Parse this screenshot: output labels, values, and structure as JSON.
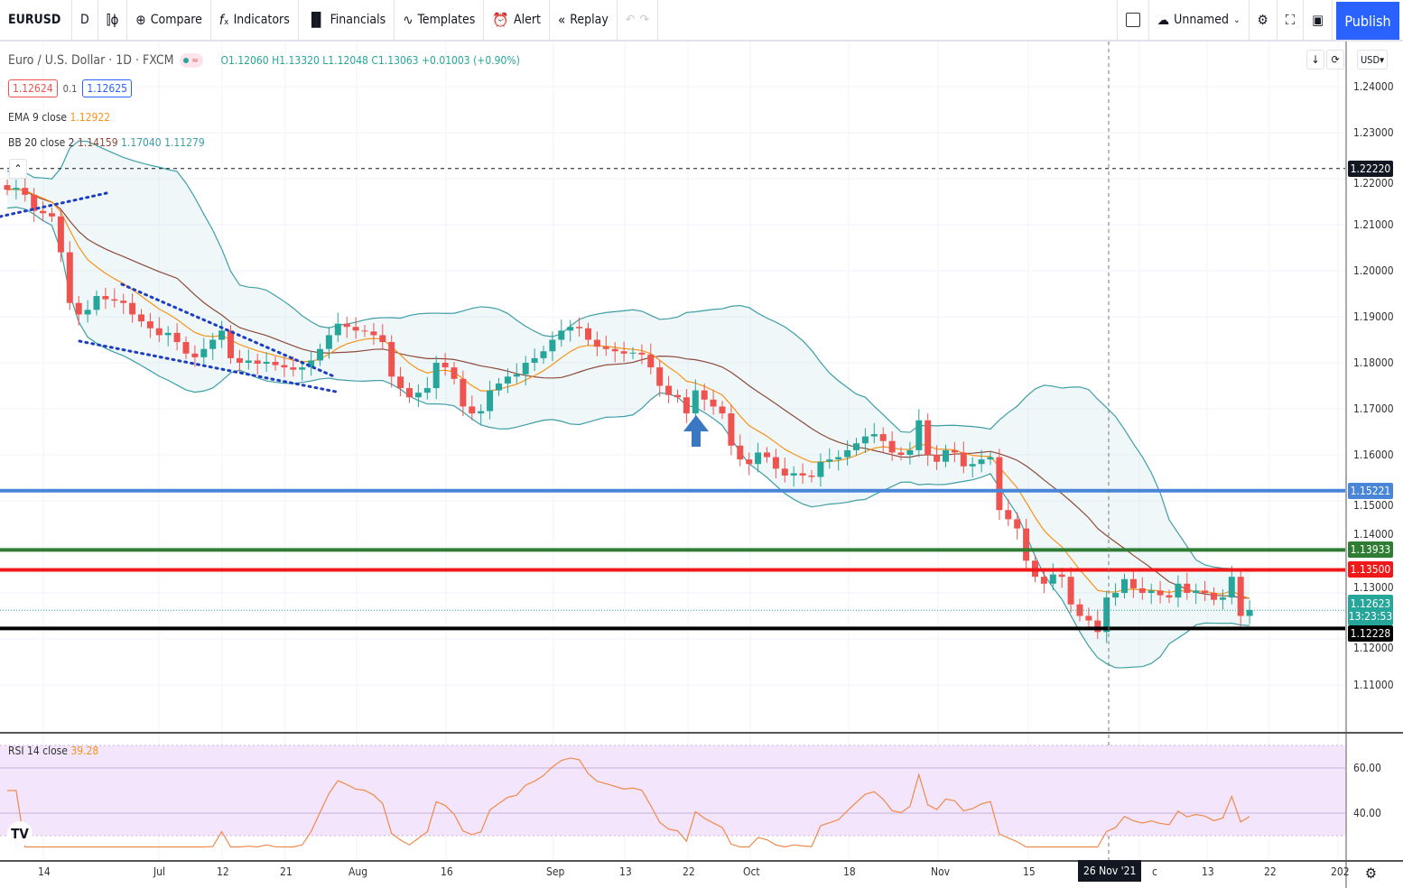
{
  "toolbar": {
    "symbol": "EURUSD",
    "interval": "D",
    "compare": "Compare",
    "indicators": "Indicators",
    "financials": "Financials",
    "templates": "Templates",
    "alert": "Alert",
    "replay": "Replay",
    "layout_name": "Unnamed",
    "publish": "Publish"
  },
  "legend": {
    "title": "Euro / U.S. Dollar · 1D · FXCM",
    "open": "O1.12060",
    "high": "H1.13320",
    "low": "L1.12048",
    "close": "C1.13063",
    "change": "+0.01003 (+0.90%)",
    "bid": "1.12624",
    "spread": "0.1",
    "ask": "1.12625",
    "ema_label": "EMA 9 close",
    "ema_value": "1.12922",
    "bb_label": "BB 20 close 2",
    "bb_basis": "1.14159",
    "bb_upper": "1.17040",
    "bb_lower": "1.11279",
    "rsi_label": "RSI 14 close",
    "rsi_value": "39.28"
  },
  "price_axis": {
    "currency": "USD",
    "ticks": [
      "1.24000",
      "1.23000",
      "1.22000",
      "1.21000",
      "1.20000",
      "1.19000",
      "1.18000",
      "1.17000",
      "1.16000",
      "1.15000",
      "1.14000",
      "1.13000",
      "1.12000",
      "1.11000"
    ],
    "rsi_ticks": [
      "60.00",
      "40.00"
    ]
  },
  "time_axis": {
    "labels": [
      "14",
      "Jul",
      "12",
      "21",
      "Aug",
      "16",
      "Sep",
      "13",
      "22",
      "Oct",
      "18",
      "Nov",
      "15",
      "c",
      "13",
      "22",
      "202"
    ],
    "crosshair_label": "26 Nov '21"
  },
  "horizontal_lines": [
    {
      "price": 1.2222,
      "label": "1.22220",
      "color": "#131722",
      "style": "dashed"
    },
    {
      "price": 1.15221,
      "label": "1.15221",
      "color": "#4a86d8",
      "style": "solid"
    },
    {
      "price": 1.13933,
      "label": "1.13933",
      "color": "#2e7d32",
      "style": "solid"
    },
    {
      "price": 1.135,
      "label": "1.13500",
      "color": "#f01818",
      "style": "solid"
    },
    {
      "price": 1.12228,
      "label": "1.12228",
      "color": "#000000",
      "style": "solid"
    }
  ],
  "last_price": {
    "label": "1.12623",
    "countdown": "13:23:53",
    "color": "#26a69a"
  },
  "colors": {
    "up": "#26a69a",
    "down": "#ef5350",
    "ema": "#f7931a",
    "bb_basis": "#8d4a3a",
    "bb_band": "#3d9ea6",
    "rsi": "#f08a4b",
    "accent": "#2962ff"
  },
  "closes": [
    1.2176,
    1.218,
    1.2165,
    1.213,
    1.2125,
    1.2118,
    1.204,
    1.193,
    1.1905,
    1.1915,
    1.1945,
    1.1938,
    1.1935,
    1.193,
    1.1905,
    1.189,
    1.1875,
    1.186,
    1.1865,
    1.1845,
    1.182,
    1.1812,
    1.183,
    1.185,
    1.187,
    1.181,
    1.18,
    1.1805,
    1.1798,
    1.1802,
    1.1795,
    1.179,
    1.1785,
    1.179,
    1.1805,
    1.183,
    1.186,
    1.1885,
    1.1878,
    1.187,
    1.1868,
    1.186,
    1.1845,
    1.177,
    1.1745,
    1.1725,
    1.1735,
    1.1745,
    1.18,
    1.179,
    1.1765,
    1.1705,
    1.169,
    1.1695,
    1.174,
    1.1755,
    1.177,
    1.1775,
    1.18,
    1.181,
    1.1825,
    1.185,
    1.187,
    1.1878,
    1.1875,
    1.185,
    1.1835,
    1.183,
    1.1825,
    1.182,
    1.1822,
    1.1818,
    1.179,
    1.175,
    1.173,
    1.1725,
    1.169,
    1.174,
    1.172,
    1.1705,
    1.169,
    1.162,
    1.159,
    1.158,
    1.1605,
    1.1595,
    1.157,
    1.1555,
    1.156,
    1.1555,
    1.1552,
    1.1585,
    1.159,
    1.1595,
    1.161,
    1.1625,
    1.164,
    1.1645,
    1.163,
    1.1605,
    1.16,
    1.161,
    1.1675,
    1.16,
    1.1585,
    1.161,
    1.1605,
    1.1575,
    1.158,
    1.159,
    1.1595,
    1.148,
    1.146,
    1.144,
    1.137,
    1.1335,
    1.132,
    1.134,
    1.1335,
    1.1275,
    1.125,
    1.124,
    1.1215,
    1.129,
    1.13,
    1.133,
    1.131,
    1.13,
    1.1305,
    1.1295,
    1.129,
    1.132,
    1.13,
    1.1305,
    1.13,
    1.1285,
    1.129,
    1.1335,
    1.125,
    1.1263
  ]
}
